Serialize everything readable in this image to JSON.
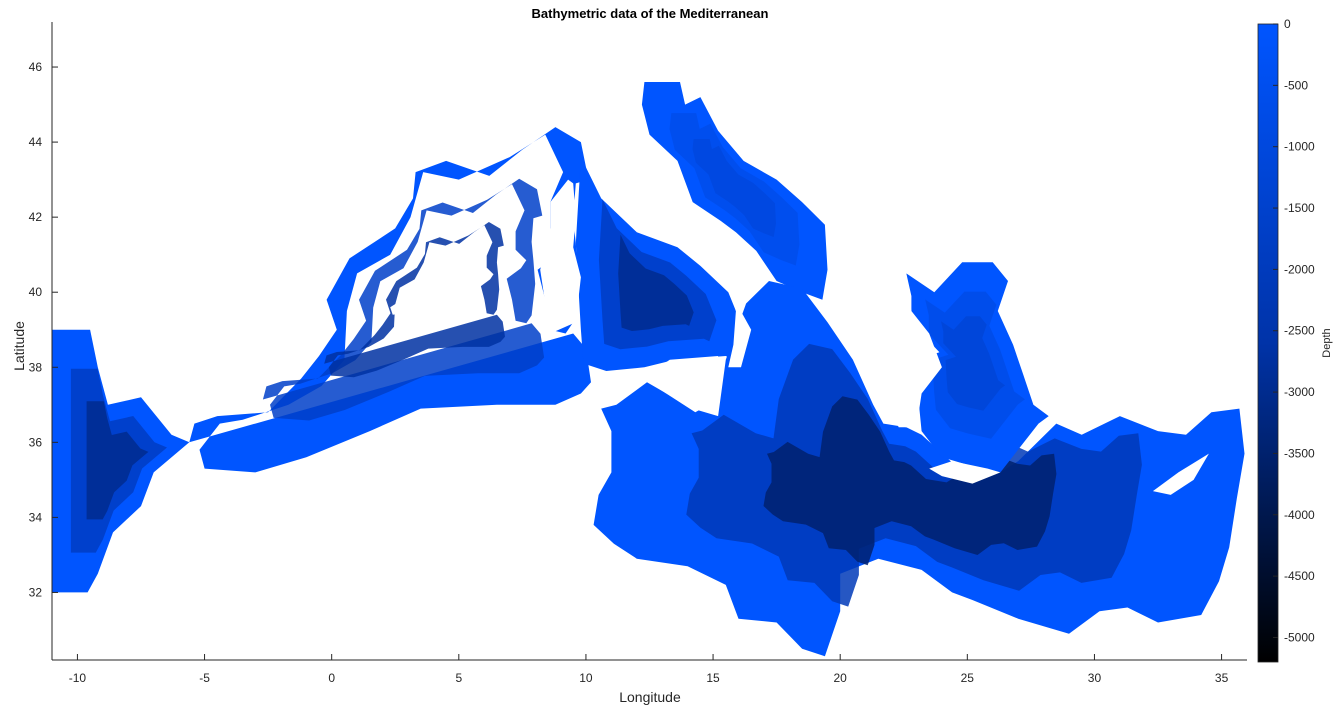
{
  "chart_data": {
    "type": "heatmap",
    "title": "Bathymetric data of the Mediterranean",
    "xlabel": "Longitude",
    "ylabel": "Latitude",
    "xlim": [
      -11,
      36
    ],
    "ylim": [
      30.2,
      47.2
    ],
    "x_ticks": [
      "-10",
      "-5",
      "0",
      "5",
      "10",
      "15",
      "20",
      "25",
      "30",
      "35"
    ],
    "y_ticks": [
      "32",
      "34",
      "36",
      "38",
      "40",
      "42",
      "44",
      "46"
    ],
    "colorbar": {
      "label": "Depth",
      "range": [
        -5200,
        0
      ],
      "ticks": [
        "0",
        "-500",
        "-1000",
        "-1500",
        "-2000",
        "-2500",
        "-3000",
        "-3500",
        "-4000",
        "-4500",
        "-5000"
      ],
      "colors": {
        "shallow": "#0055ff",
        "deep": "#000000"
      }
    },
    "regions": [
      {
        "name": "atlantic-gulf-of-cadiz",
        "depth": -3000,
        "lonlat": [
          [
            -11,
            39
          ],
          [
            -9.5,
            39
          ],
          [
            -9.2,
            38
          ],
          [
            -8.8,
            37
          ],
          [
            -7.5,
            37.2
          ],
          [
            -6.3,
            36.2
          ],
          [
            -5.6,
            36.0
          ],
          [
            -7,
            35.2
          ],
          [
            -7.5,
            34.3
          ],
          [
            -8.6,
            33.6
          ],
          [
            -9.2,
            32.5
          ],
          [
            -9.6,
            32.0
          ],
          [
            -11,
            32.0
          ]
        ]
      },
      {
        "name": "alboran-balearic-ligurian",
        "depth": -2700,
        "lonlat": [
          [
            -5.6,
            36.0
          ],
          [
            -5.4,
            36.5
          ],
          [
            -4.5,
            36.7
          ],
          [
            -2.5,
            36.8
          ],
          [
            -1.2,
            37.7
          ],
          [
            -0.5,
            38.3
          ],
          [
            0.2,
            39.0
          ],
          [
            -0.2,
            39.8
          ],
          [
            0.7,
            40.9
          ],
          [
            2.5,
            41.7
          ],
          [
            3.2,
            42.5
          ],
          [
            3.3,
            43.2
          ],
          [
            4.5,
            43.5
          ],
          [
            6.2,
            43.1
          ],
          [
            7.5,
            43.8
          ],
          [
            8.8,
            44.4
          ],
          [
            9.8,
            44.0
          ],
          [
            10.1,
            43.0
          ],
          [
            9.6,
            42.9
          ],
          [
            9.5,
            42.0
          ],
          [
            9.6,
            41.3
          ],
          [
            9.7,
            40.4
          ],
          [
            9.5,
            39.2
          ],
          [
            9.2,
            38.9
          ],
          [
            8.6,
            39.0
          ],
          [
            8.4,
            39.8
          ],
          [
            8.1,
            40.6
          ],
          [
            8.9,
            41.0
          ],
          [
            9.2,
            41.3
          ],
          [
            8.6,
            41.7
          ],
          [
            8.6,
            42.4
          ],
          [
            9.1,
            43.2
          ],
          [
            8.4,
            44.2
          ],
          [
            7.0,
            43.6
          ],
          [
            5.0,
            43.0
          ],
          [
            3.6,
            43.2
          ],
          [
            3.1,
            42.0
          ],
          [
            2.3,
            41.0
          ],
          [
            1.0,
            40.5
          ],
          [
            0.6,
            39.5
          ],
          [
            0.5,
            38.2
          ],
          [
            -0.4,
            37.5
          ],
          [
            -1.7,
            37.0
          ],
          [
            -3.5,
            36.6
          ],
          [
            -4.4,
            36.5
          ],
          [
            -5.2,
            35.8
          ],
          [
            -5.0,
            35.3
          ],
          [
            -3.0,
            35.2
          ],
          [
            -1.0,
            35.6
          ],
          [
            1.5,
            36.3
          ],
          [
            3.5,
            36.9
          ],
          [
            6.5,
            37.0
          ],
          [
            8.8,
            37.0
          ],
          [
            9.8,
            37.3
          ],
          [
            10.2,
            37.6
          ],
          [
            10.0,
            38.5
          ],
          [
            9.5,
            38.9
          ]
        ]
      },
      {
        "name": "tyrrhenian",
        "depth": -3000,
        "lonlat": [
          [
            9.6,
            41.3
          ],
          [
            9.8,
            43.6
          ],
          [
            10.6,
            42.5
          ],
          [
            12.0,
            41.6
          ],
          [
            13.6,
            41.2
          ],
          [
            14.5,
            40.7
          ],
          [
            15.6,
            40.0
          ],
          [
            16.2,
            39.0
          ],
          [
            15.8,
            38.2
          ],
          [
            15.5,
            38.3
          ],
          [
            13.5,
            38.2
          ],
          [
            12.3,
            38.0
          ],
          [
            10.8,
            37.9
          ],
          [
            9.9,
            38.1
          ],
          [
            9.8,
            39.0
          ]
        ]
      },
      {
        "name": "adriatic",
        "depth": -1000,
        "lonlat": [
          [
            12.3,
            45.6
          ],
          [
            13.7,
            45.6
          ],
          [
            13.9,
            45.0
          ],
          [
            14.5,
            45.2
          ],
          [
            15.2,
            44.3
          ],
          [
            16.2,
            43.5
          ],
          [
            17.5,
            43.0
          ],
          [
            18.5,
            42.4
          ],
          [
            19.4,
            41.8
          ],
          [
            19.5,
            40.6
          ],
          [
            19.3,
            39.8
          ],
          [
            18.5,
            40.0
          ],
          [
            17.5,
            40.3
          ],
          [
            16.7,
            41.1
          ],
          [
            15.9,
            41.6
          ],
          [
            15.3,
            41.9
          ],
          [
            14.2,
            42.4
          ],
          [
            13.6,
            43.5
          ],
          [
            12.5,
            44.2
          ],
          [
            12.2,
            45.0
          ]
        ]
      },
      {
        "name": "ionian-central",
        "depth": -3500,
        "lonlat": [
          [
            15.5,
            38.2
          ],
          [
            16.3,
            39.7
          ],
          [
            17.2,
            40.3
          ],
          [
            18.5,
            40.1
          ],
          [
            19.5,
            39.2
          ],
          [
            20.5,
            38.2
          ],
          [
            21.3,
            37.0
          ],
          [
            21.7,
            36.5
          ],
          [
            22.6,
            36.4
          ],
          [
            23.2,
            36.2
          ],
          [
            24.5,
            35.4
          ],
          [
            26.3,
            35.2
          ],
          [
            27.0,
            35.5
          ],
          [
            28.5,
            36.5
          ],
          [
            29.5,
            36.2
          ],
          [
            31,
            36.7
          ],
          [
            32.5,
            36.3
          ],
          [
            33.6,
            36.2
          ],
          [
            34.6,
            36.8
          ],
          [
            35.7,
            36.9
          ],
          [
            35.9,
            35.7
          ],
          [
            35.6,
            34.5
          ],
          [
            35.3,
            33.2
          ],
          [
            34.9,
            32.3
          ],
          [
            34.2,
            31.4
          ],
          [
            32.5,
            31.2
          ],
          [
            31.3,
            31.6
          ],
          [
            30.2,
            31.5
          ],
          [
            29.0,
            30.9
          ],
          [
            27.0,
            31.3
          ],
          [
            25.2,
            31.8
          ],
          [
            24.4,
            32.0
          ],
          [
            23.2,
            32.6
          ],
          [
            21.5,
            32.9
          ],
          [
            20.0,
            32.5
          ],
          [
            20.0,
            31.5
          ],
          [
            19.4,
            30.3
          ],
          [
            18.5,
            30.5
          ],
          [
            17.5,
            31.2
          ],
          [
            16.0,
            31.3
          ],
          [
            15.5,
            32.2
          ],
          [
            14.0,
            32.7
          ],
          [
            12.0,
            32.9
          ],
          [
            11.1,
            33.3
          ],
          [
            10.3,
            33.8
          ],
          [
            10.5,
            34.6
          ],
          [
            11.0,
            35.2
          ],
          [
            11.0,
            36.3
          ],
          [
            10.6,
            36.9
          ],
          [
            11.2,
            37.0
          ],
          [
            12.4,
            37.6
          ],
          [
            14.2,
            36.9
          ],
          [
            15.2,
            36.7
          ]
        ]
      },
      {
        "name": "aegean",
        "depth": -1200,
        "lonlat": [
          [
            22.6,
            40.5
          ],
          [
            23.7,
            40.0
          ],
          [
            24.8,
            40.8
          ],
          [
            26.0,
            40.8
          ],
          [
            26.6,
            40.3
          ],
          [
            26.2,
            39.5
          ],
          [
            26.8,
            38.6
          ],
          [
            27.2,
            37.8
          ],
          [
            27.6,
            37.0
          ],
          [
            28.2,
            36.7
          ],
          [
            27.8,
            36.5
          ],
          [
            26.3,
            35.2
          ],
          [
            25.0,
            35.4
          ],
          [
            24.0,
            35.6
          ],
          [
            23.2,
            36.3
          ],
          [
            23.1,
            37.0
          ],
          [
            23.0,
            38.2
          ],
          [
            23.9,
            38.4
          ],
          [
            22.8,
            39.2
          ],
          [
            22.8,
            39.9
          ]
        ]
      },
      {
        "name": "black-sea-mask",
        "depth": null,
        "lonlat": []
      }
    ],
    "islands": [
      {
        "name": "corsica-sardinia",
        "lonlat": [
          [
            8.6,
            38.9
          ],
          [
            9.6,
            39.2
          ],
          [
            9.8,
            40.4
          ],
          [
            9.5,
            41.2
          ],
          [
            9.6,
            42.0
          ],
          [
            9.5,
            42.9
          ],
          [
            9.3,
            43.0
          ],
          [
            8.6,
            42.4
          ],
          [
            8.6,
            41.6
          ],
          [
            8.2,
            40.6
          ],
          [
            8.4,
            39.7
          ]
        ]
      },
      {
        "name": "balearic-islands",
        "lonlat": [
          [
            2.4,
            39.4
          ],
          [
            3.4,
            39.5
          ],
          [
            4.2,
            39.9
          ],
          [
            3.8,
            40.1
          ],
          [
            3.0,
            39.9
          ],
          [
            2.3,
            39.6
          ]
        ]
      },
      {
        "name": "sicily",
        "lonlat": [
          [
            12.4,
            37.8
          ],
          [
            13.3,
            38.2
          ],
          [
            15.2,
            38.3
          ],
          [
            15.1,
            37.1
          ],
          [
            14.3,
            36.8
          ],
          [
            12.7,
            37.5
          ]
        ]
      },
      {
        "name": "crete",
        "lonlat": [
          [
            23.5,
            35.3
          ],
          [
            24.4,
            35.5
          ],
          [
            25.8,
            35.3
          ],
          [
            26.3,
            35.2
          ],
          [
            25.2,
            34.9
          ],
          [
            24.0,
            35.1
          ]
        ]
      },
      {
        "name": "cyprus",
        "lonlat": [
          [
            32.3,
            34.7
          ],
          [
            33.3,
            35.2
          ],
          [
            34.5,
            35.7
          ],
          [
            33.9,
            35.0
          ],
          [
            33.0,
            34.6
          ]
        ]
      },
      {
        "name": "peloponnese-greece",
        "lonlat": [
          [
            20.0,
            39.6
          ],
          [
            21.2,
            38.6
          ],
          [
            21.6,
            37.4
          ],
          [
            22.3,
            36.4
          ],
          [
            23.0,
            36.4
          ],
          [
            23.2,
            37.3
          ],
          [
            24.0,
            38.0
          ],
          [
            23.5,
            38.9
          ],
          [
            22.8,
            39.5
          ],
          [
            22.6,
            40.5
          ],
          [
            21.0,
            40.5
          ]
        ]
      },
      {
        "name": "italy-heel",
        "lonlat": [
          [
            15.6,
            40.1
          ],
          [
            16.5,
            39.0
          ],
          [
            16.1,
            38.0
          ],
          [
            15.6,
            38.0
          ],
          [
            15.8,
            38.6
          ],
          [
            15.9,
            39.5
          ]
        ]
      }
    ]
  }
}
